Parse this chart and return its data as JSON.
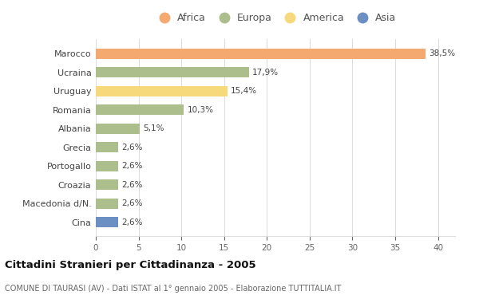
{
  "categories": [
    "Marocco",
    "Ucraina",
    "Uruguay",
    "Romania",
    "Albania",
    "Grecia",
    "Portogallo",
    "Croazia",
    "Macedonia d/N.",
    "Cina"
  ],
  "values": [
    38.5,
    17.9,
    15.4,
    10.3,
    5.1,
    2.6,
    2.6,
    2.6,
    2.6,
    2.6
  ],
  "labels": [
    "38,5%",
    "17,9%",
    "15,4%",
    "10,3%",
    "5,1%",
    "2,6%",
    "2,6%",
    "2,6%",
    "2,6%",
    "2,6%"
  ],
  "colors": [
    "#F4A970",
    "#ABBE8B",
    "#F5D97A",
    "#ABBE8B",
    "#ABBE8B",
    "#ABBE8B",
    "#ABBE8B",
    "#ABBE8B",
    "#ABBE8B",
    "#6B8FC2"
  ],
  "legend_labels": [
    "Africa",
    "Europa",
    "America",
    "Asia"
  ],
  "legend_colors": [
    "#F4A970",
    "#ABBE8B",
    "#F5D97A",
    "#6B8FC2"
  ],
  "title": "Cittadini Stranieri per Cittadinanza - 2005",
  "subtitle": "COMUNE DI TAURASI (AV) - Dati ISTAT al 1° gennaio 2005 - Elaborazione TUTTITALIA.IT",
  "xlim": [
    0,
    42
  ],
  "xticks": [
    0,
    5,
    10,
    15,
    20,
    25,
    30,
    35,
    40
  ],
  "background_color": "#ffffff",
  "grid_color": "#dddddd"
}
